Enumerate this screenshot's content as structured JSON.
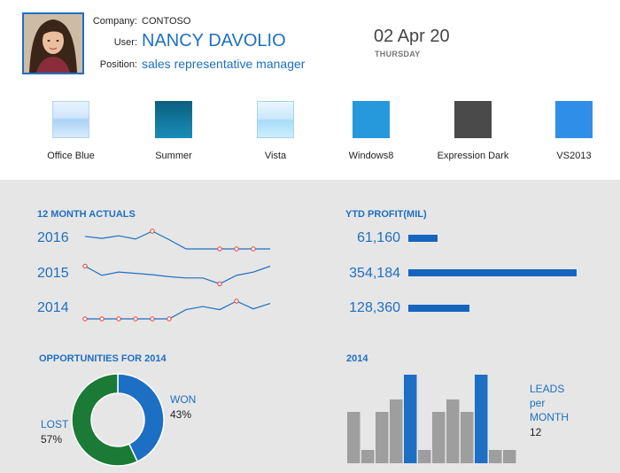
{
  "header": {
    "company_label": "Company:",
    "company_value": "CONTOSO",
    "user_label": "User:",
    "user_value": "NANCY DAVOLIO",
    "position_label": "Position:",
    "position_value": "sales representative manager",
    "date": "02 Apr 20",
    "weekday": "THURSDAY"
  },
  "themes": [
    {
      "label": "Office Blue",
      "color": "#cfe5fb"
    },
    {
      "label": "Summer",
      "color": "#137fa6"
    },
    {
      "label": "Vista",
      "color": "#c9e8fb"
    },
    {
      "label": "Windows8",
      "color": "#2699dc"
    },
    {
      "label": "Expression Dark",
      "color": "#4a4a4a"
    },
    {
      "label": "VS2013",
      "color": "#2f8fe8"
    }
  ],
  "actuals": {
    "title": "12 MONTH ACTUALS",
    "rows": [
      {
        "year": "2016",
        "values": [
          20,
          23,
          19,
          24,
          12,
          25,
          39,
          39,
          39,
          39,
          39,
          39
        ],
        "markers": [
          4,
          8,
          9,
          10
        ]
      },
      {
        "year": "2015",
        "values": [
          29,
          43,
          38,
          40,
          42,
          45,
          47,
          47,
          56,
          43,
          38,
          29
        ],
        "markers": [
          0,
          8
        ]
      },
      {
        "year": "2014",
        "values": [
          23,
          23,
          23,
          23,
          23,
          23,
          11,
          7,
          11,
          0,
          10,
          3
        ],
        "markers": [
          0,
          1,
          2,
          3,
          4,
          5,
          9
        ]
      }
    ]
  },
  "profit": {
    "title": "YTD PROFIT(MIL)",
    "rows": [
      {
        "value": "61,160",
        "amount": 61160
      },
      {
        "value": "354,184",
        "amount": 354184
      },
      {
        "value": "128,360",
        "amount": 128360
      }
    ]
  },
  "opportunities": {
    "title": "OPPORTUNITIES FOR 2014",
    "won_label": "WON",
    "won_pct": "43%",
    "won_value": 43,
    "lost_label": "LOST",
    "lost_pct": "57%",
    "lost_value": 57,
    "won_color": "#1d6fc4",
    "lost_color": "#1a7a36"
  },
  "leads": {
    "title": "2014",
    "label_line1": "LEADS",
    "label_line2": "per",
    "label_line3": "MONTH",
    "value": "12",
    "values": [
      58,
      15,
      58,
      72,
      100,
      15,
      58,
      72,
      58,
      100,
      15,
      15
    ],
    "highlight": [
      4,
      9
    ],
    "bar_color": "#9e9e9e",
    "highlight_color": "#1d6fc4"
  },
  "colors": {
    "accent": "#1e6fc2",
    "line": "#1e6fc2",
    "marker": "#e53935"
  }
}
